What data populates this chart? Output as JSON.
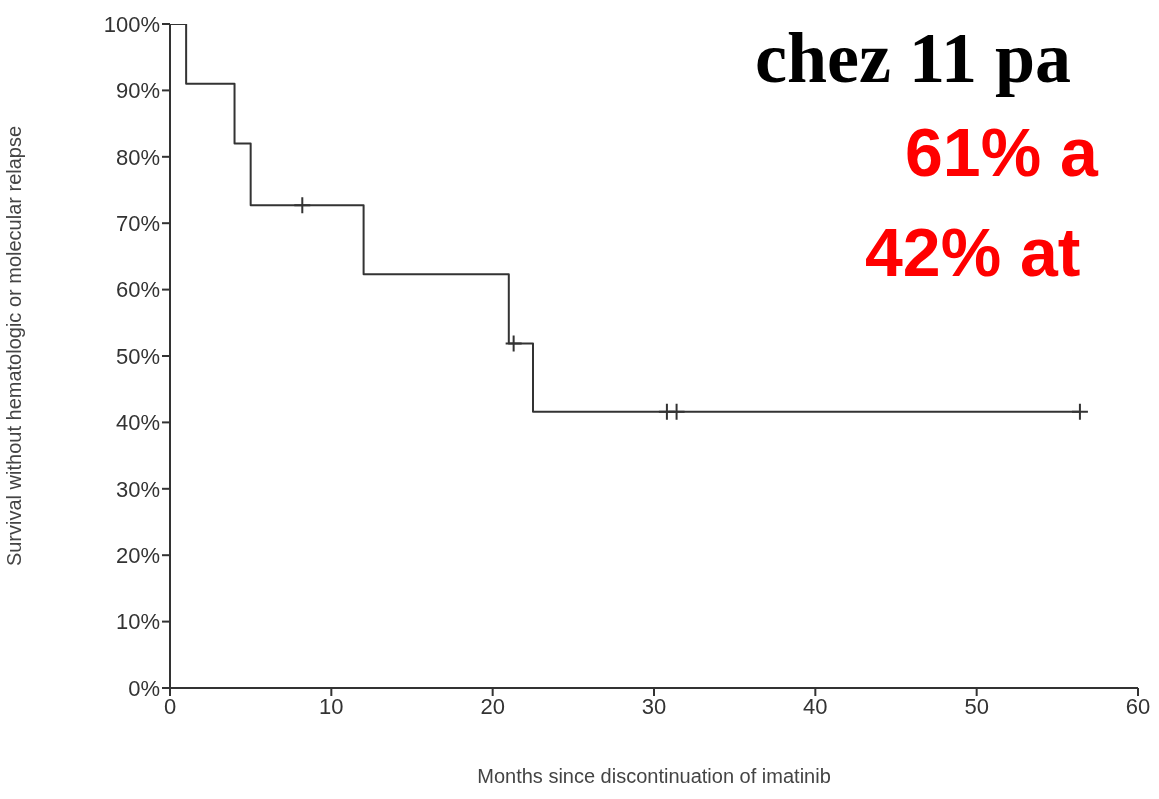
{
  "chart_data": {
    "type": "step",
    "title": "chez 11 pa",
    "annotations": [
      "61% a",
      "42% at"
    ],
    "xlabel": "Months since discontinuation of imatinib",
    "ylabel": "Survival without hematologic or molecular relapse",
    "xlim": [
      0,
      60
    ],
    "xticks": [
      0,
      10,
      20,
      30,
      40,
      50,
      60
    ],
    "ylim": [
      0,
      100
    ],
    "yticks": [
      {
        "value": 0,
        "label": "0%"
      },
      {
        "value": 10,
        "label": "10%"
      },
      {
        "value": 20,
        "label": "20%"
      },
      {
        "value": 30,
        "label": "30%"
      },
      {
        "value": 40,
        "label": "40%"
      },
      {
        "value": 50,
        "label": "50%"
      },
      {
        "value": 60,
        "label": "60%"
      },
      {
        "value": 70,
        "label": "70%"
      },
      {
        "value": 80,
        "label": "80%"
      },
      {
        "value": 90,
        "label": "90%"
      },
      {
        "value": 100,
        "label": "100%"
      }
    ],
    "grid": false,
    "legend": false,
    "series": [
      {
        "color": "#333333",
        "x": [
          0,
          1,
          4,
          5,
          12,
          21,
          22.5,
          56.4
        ],
        "values": [
          100,
          91,
          82,
          72.7,
          62.3,
          51.9,
          41.6,
          41.6
        ]
      },
      {
        "type": "scatter",
        "marker": "cross",
        "color": "#333333",
        "x": [
          8.2,
          21.3,
          30.8,
          31.4,
          56.4
        ],
        "values": [
          72.7,
          51.9,
          41.6,
          41.6,
          41.6
        ]
      }
    ]
  }
}
